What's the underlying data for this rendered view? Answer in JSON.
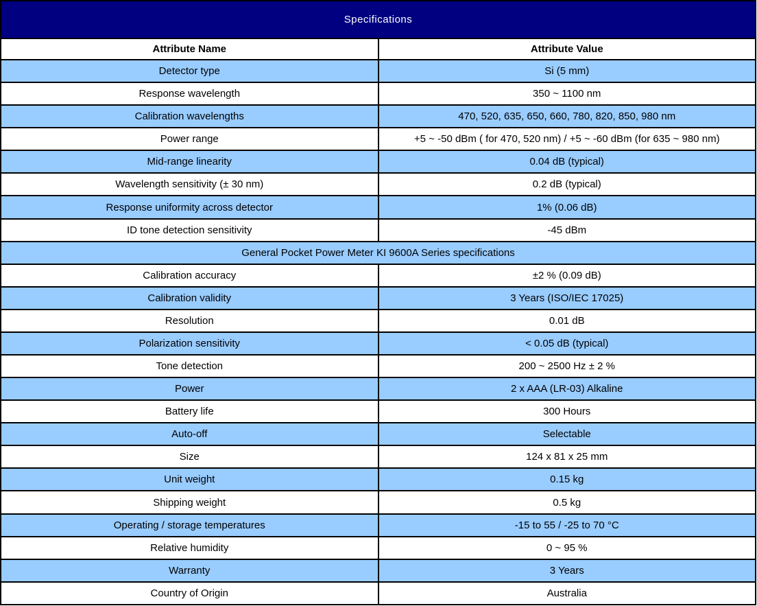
{
  "title": "Specifications",
  "columns": {
    "name": "Attribute Name",
    "value": "Attribute Value"
  },
  "rows": [
    {
      "name": "Detector type",
      "value": "Si (5 mm)"
    },
    {
      "name": "Response wavelength",
      "value": "350 ~ 1100 nm"
    },
    {
      "name": "Calibration wavelengths",
      "value": "470, 520, 635, 650, 660, 780, 820, 850, 980 nm"
    },
    {
      "name": "Power range",
      "value": "+5 ~ -50 dBm ( for 470, 520 nm) / +5 ~ -60 dBm (for 635 ~ 980 nm)"
    },
    {
      "name": "Mid-range linearity",
      "value": "0.04 dB (typical)"
    },
    {
      "name": "Wavelength sensitivity (± 30 nm)",
      "value": "0.2 dB (typical)"
    },
    {
      "name": "Response uniformity across detector",
      "value": "1% (0.06 dB)"
    },
    {
      "name": "ID tone detection sensitivity",
      "value": "-45 dBm"
    },
    {
      "span": "General Pocket Power Meter KI 9600A Series specifications"
    },
    {
      "name": "Calibration accuracy",
      "value": "±2 % (0.09 dB)"
    },
    {
      "name": "Calibration validity",
      "value": "3 Years (ISO/IEC 17025)"
    },
    {
      "name": "Resolution",
      "value": "0.01 dB"
    },
    {
      "name": "Polarization sensitivity",
      "value": "< 0.05 dB (typical)"
    },
    {
      "name": "Tone detection",
      "value": "200 ~ 2500 Hz ± 2 %"
    },
    {
      "name": "Power",
      "value": "2 x AAA (LR-03) Alkaline"
    },
    {
      "name": "Battery life",
      "value": "300 Hours"
    },
    {
      "name": "Auto-off",
      "value": "Selectable"
    },
    {
      "name": "Size",
      "value": "124 x 81 x 25 mm"
    },
    {
      "name": "Unit weight",
      "value": "0.15 kg"
    },
    {
      "name": "Shipping weight",
      "value": "0.5 kg"
    },
    {
      "name": "Operating / storage temperatures",
      "value": "-15 to 55 / -25 to 70 °C"
    },
    {
      "name": "Relative humidity",
      "value": "0 ~ 95 %"
    },
    {
      "name": "Warranty",
      "value": "3 Years"
    },
    {
      "name": "Country of Origin",
      "value": "Australia"
    }
  ],
  "colors": {
    "title_bg": "#000080",
    "title_text": "#FFFFFF",
    "row_alt_bg": "#99CCFF",
    "row_bg": "#FFFFFF",
    "border": "#000000",
    "text": "#000000"
  }
}
